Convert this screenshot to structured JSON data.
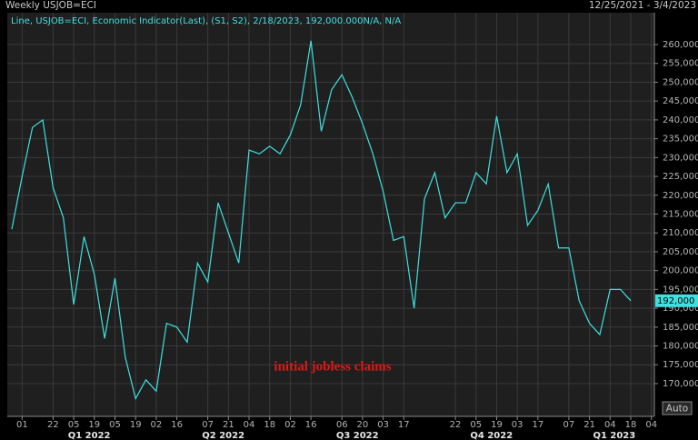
{
  "chart_data": {
    "type": "line",
    "title": "Weekly USJOB=ECI",
    "date_range": "12/25/2021 - 3/4/2023",
    "annotation": "initial jobless claims",
    "auto_button": "Auto",
    "grid": true,
    "x": [
      0,
      1,
      2,
      3,
      4,
      5,
      6,
      7,
      8,
      9,
      10,
      11,
      12,
      13,
      14,
      15,
      16,
      17,
      18,
      19,
      20,
      21,
      22,
      23,
      24,
      25,
      26,
      27,
      28,
      29,
      30,
      31,
      32,
      33,
      34,
      35,
      36,
      37,
      38,
      39,
      40,
      41,
      42,
      43,
      44,
      45,
      46,
      47,
      48,
      49,
      50,
      51,
      52,
      53,
      54,
      55,
      56,
      57,
      58,
      59,
      60
    ],
    "series": [
      {
        "name": "Line, USJOB=ECI, Economic Indicator(Last), (S1, S2), 2/18/2023, 192,000.000N/A, N/A",
        "color": "#3fe0e0",
        "values": [
          211000,
          225000,
          238000,
          240000,
          222000,
          214000,
          191000,
          209000,
          199000,
          182000,
          198000,
          177000,
          166000,
          171000,
          168000,
          186000,
          185000,
          181000,
          202000,
          197000,
          218000,
          210000,
          202000,
          232000,
          231000,
          233000,
          231000,
          236000,
          244000,
          261000,
          237000,
          248000,
          252000,
          246000,
          239000,
          231000,
          221000,
          208000,
          209000,
          190000,
          219000,
          226000,
          214000,
          218000,
          218000,
          226000,
          223000,
          241000,
          226000,
          231000,
          212000,
          216000,
          223000,
          206000,
          206000,
          192000,
          186000,
          183000,
          195000,
          195000,
          192000
        ],
        "value_labels": [
          null,
          null,
          null,
          null,
          null,
          null,
          null,
          null,
          null,
          null,
          null,
          null,
          null,
          null,
          null,
          null,
          null,
          null,
          null,
          null,
          null,
          null,
          null,
          null,
          null,
          null,
          null,
          null,
          null,
          null,
          null,
          null,
          null,
          null,
          null,
          null,
          null,
          null,
          null,
          null,
          null,
          null,
          null,
          null,
          null,
          null,
          null,
          null,
          null,
          null,
          null,
          null,
          null,
          null,
          null,
          null,
          null,
          null,
          null,
          null,
          "192,000"
        ]
      }
    ],
    "xlim": [
      -0.44,
      62.29
    ],
    "xticks": [
      {
        "value": 1,
        "label": "01"
      },
      {
        "value": 4,
        "label": "22"
      },
      {
        "value": 6,
        "label": "05"
      },
      {
        "value": 8,
        "label": "19"
      },
      {
        "value": 10,
        "label": "05"
      },
      {
        "value": 12,
        "label": "19"
      },
      {
        "value": 14,
        "label": "02"
      },
      {
        "value": 16,
        "label": "16"
      },
      {
        "value": 19,
        "label": "07"
      },
      {
        "value": 21,
        "label": "21"
      },
      {
        "value": 23,
        "label": "04"
      },
      {
        "value": 25,
        "label": "18"
      },
      {
        "value": 27,
        "label": "02"
      },
      {
        "value": 29,
        "label": "16"
      },
      {
        "value": 32,
        "label": "06"
      },
      {
        "value": 34,
        "label": "20"
      },
      {
        "value": 36,
        "label": "03"
      },
      {
        "value": 38,
        "label": "17"
      },
      {
        "value": 43,
        "label": "22"
      },
      {
        "value": 45,
        "label": "05"
      },
      {
        "value": 47,
        "label": "19"
      },
      {
        "value": 49,
        "label": "03"
      },
      {
        "value": 51,
        "label": "17"
      },
      {
        "value": 54,
        "label": "07"
      },
      {
        "value": 56,
        "label": "21"
      },
      {
        "value": 58,
        "label": "04"
      },
      {
        "value": 60,
        "label": "18"
      },
      {
        "value": 62,
        "label": "04"
      }
    ],
    "quarter_ticks": [
      {
        "value": 7.5,
        "label": "Q1 2022"
      },
      {
        "value": 20.5,
        "label": "Q2 2022"
      },
      {
        "value": 33.5,
        "label": "Q3 2022"
      },
      {
        "value": 46.5,
        "label": "Q4 2022"
      },
      {
        "value": 58.4,
        "label": "Q1 2023"
      }
    ],
    "ylim": [
      161300,
      268450
    ],
    "yticks": [
      {
        "value": 170000,
        "label": "170,000"
      },
      {
        "value": 175000,
        "label": "175,000"
      },
      {
        "value": 180000,
        "label": "180,000"
      },
      {
        "value": 185000,
        "label": "185,000"
      },
      {
        "value": 190000,
        "label": "190,000"
      },
      {
        "value": 195000,
        "label": "195,000"
      },
      {
        "value": 200000,
        "label": "200,000"
      },
      {
        "value": 205000,
        "label": "205,000"
      },
      {
        "value": 210000,
        "label": "210,000"
      },
      {
        "value": 215000,
        "label": "215,000"
      },
      {
        "value": 220000,
        "label": "220,000"
      },
      {
        "value": 225000,
        "label": "225,000"
      },
      {
        "value": 230000,
        "label": "230,000"
      },
      {
        "value": 235000,
        "label": "235,000"
      },
      {
        "value": 240000,
        "label": "240,000"
      },
      {
        "value": 245000,
        "label": "245,000"
      },
      {
        "value": 250000,
        "label": "250,000"
      },
      {
        "value": 255000,
        "label": "255,000"
      },
      {
        "value": 260000,
        "label": "260,000"
      }
    ]
  }
}
